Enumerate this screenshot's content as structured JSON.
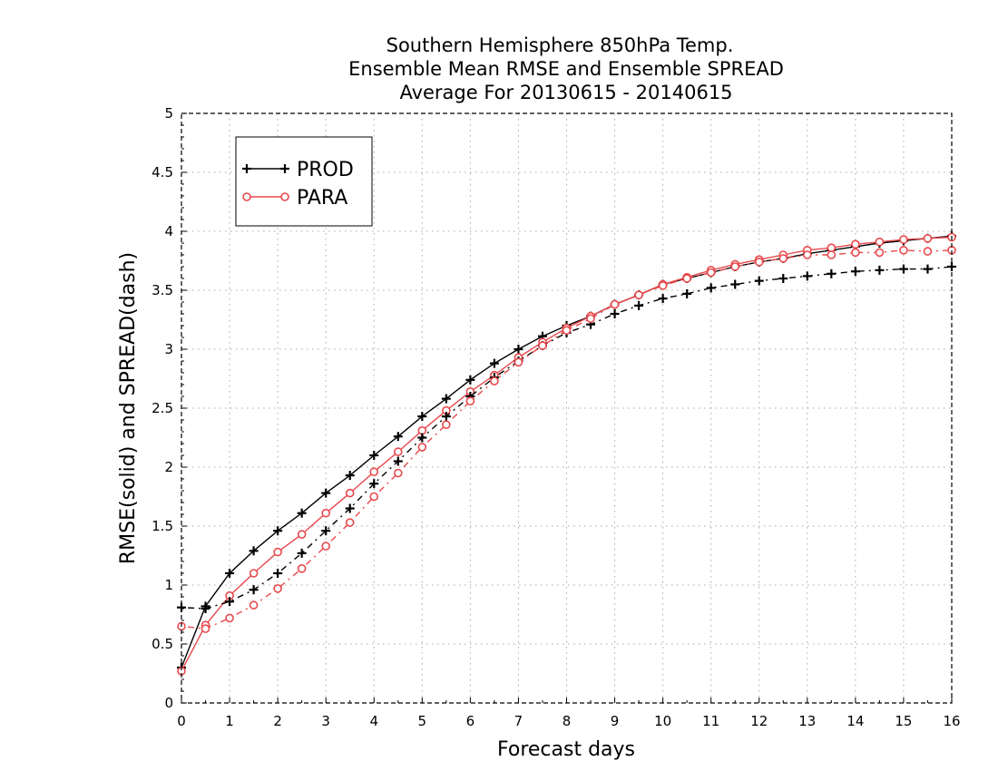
{
  "chart_data": {
    "type": "line",
    "title": [
      "Southern Hemisphere 850hPa Temp.",
      "Ensemble Mean RMSE and Ensemble SPREAD",
      "Average For 20130615 - 20140615"
    ],
    "xlabel": "Forecast days",
    "ylabel": "RMSE(solid) and SPREAD(dash)",
    "xlim": [
      0,
      16
    ],
    "ylim": [
      0,
      5
    ],
    "x_ticks": [
      "0",
      "1",
      "2",
      "3",
      "4",
      "5",
      "6",
      "7",
      "8",
      "9",
      "10",
      "11",
      "12",
      "13",
      "14",
      "15",
      "16"
    ],
    "y_ticks": [
      "0",
      "0.5",
      "1",
      "1.5",
      "2",
      "2.5",
      "3",
      "3.5",
      "4",
      "4.5",
      "5"
    ],
    "grid": true,
    "legend_position": "top-left",
    "x": [
      0,
      0.5,
      1,
      1.5,
      2,
      2.5,
      3,
      3.5,
      4,
      4.5,
      5,
      5.5,
      6,
      6.5,
      7,
      7.5,
      8,
      8.5,
      9,
      9.5,
      10,
      10.5,
      11,
      11.5,
      12,
      12.5,
      13,
      13.5,
      14,
      14.5,
      15,
      15.5,
      16
    ],
    "series": [
      {
        "name": "PROD",
        "style": "solid",
        "marker": "plus",
        "color": "#000000",
        "values": [
          0.3,
          0.82,
          1.1,
          1.29,
          1.46,
          1.61,
          1.78,
          1.93,
          2.1,
          2.26,
          2.43,
          2.58,
          2.74,
          2.88,
          3.0,
          3.11,
          3.2,
          3.28,
          3.38,
          3.46,
          3.55,
          3.6,
          3.65,
          3.7,
          3.74,
          3.77,
          3.81,
          3.84,
          3.87,
          3.9,
          3.92,
          3.94,
          3.96
        ]
      },
      {
        "name": "PARA",
        "style": "solid",
        "marker": "circle",
        "color": "#e8484c",
        "values": [
          0.27,
          0.66,
          0.91,
          1.1,
          1.28,
          1.43,
          1.61,
          1.78,
          1.96,
          2.13,
          2.31,
          2.48,
          2.64,
          2.78,
          2.93,
          3.06,
          3.18,
          3.28,
          3.38,
          3.46,
          3.55,
          3.61,
          3.67,
          3.72,
          3.76,
          3.8,
          3.84,
          3.86,
          3.89,
          3.91,
          3.93,
          3.94,
          3.95
        ]
      },
      {
        "name": "PROD",
        "style": "dash",
        "marker": "plus",
        "color": "#000000",
        "values": [
          0.81,
          0.8,
          0.86,
          0.96,
          1.1,
          1.27,
          1.46,
          1.65,
          1.86,
          2.05,
          2.25,
          2.43,
          2.6,
          2.76,
          2.9,
          3.03,
          3.14,
          3.21,
          3.3,
          3.37,
          3.43,
          3.47,
          3.52,
          3.55,
          3.58,
          3.6,
          3.62,
          3.64,
          3.66,
          3.67,
          3.68,
          3.68,
          3.7
        ]
      },
      {
        "name": "PARA",
        "style": "dash",
        "marker": "circle",
        "color": "#e8484c",
        "values": [
          0.65,
          0.63,
          0.72,
          0.83,
          0.97,
          1.14,
          1.33,
          1.53,
          1.75,
          1.95,
          2.17,
          2.36,
          2.56,
          2.73,
          2.89,
          3.03,
          3.16,
          3.26,
          3.38,
          3.46,
          3.54,
          3.6,
          3.65,
          3.7,
          3.74,
          3.77,
          3.8,
          3.8,
          3.82,
          3.82,
          3.84,
          3.83,
          3.84
        ]
      }
    ],
    "legend": [
      {
        "label": "PROD",
        "color": "#000000",
        "marker": "plus"
      },
      {
        "label": "PARA",
        "color": "#e8484c",
        "marker": "circle"
      }
    ]
  }
}
